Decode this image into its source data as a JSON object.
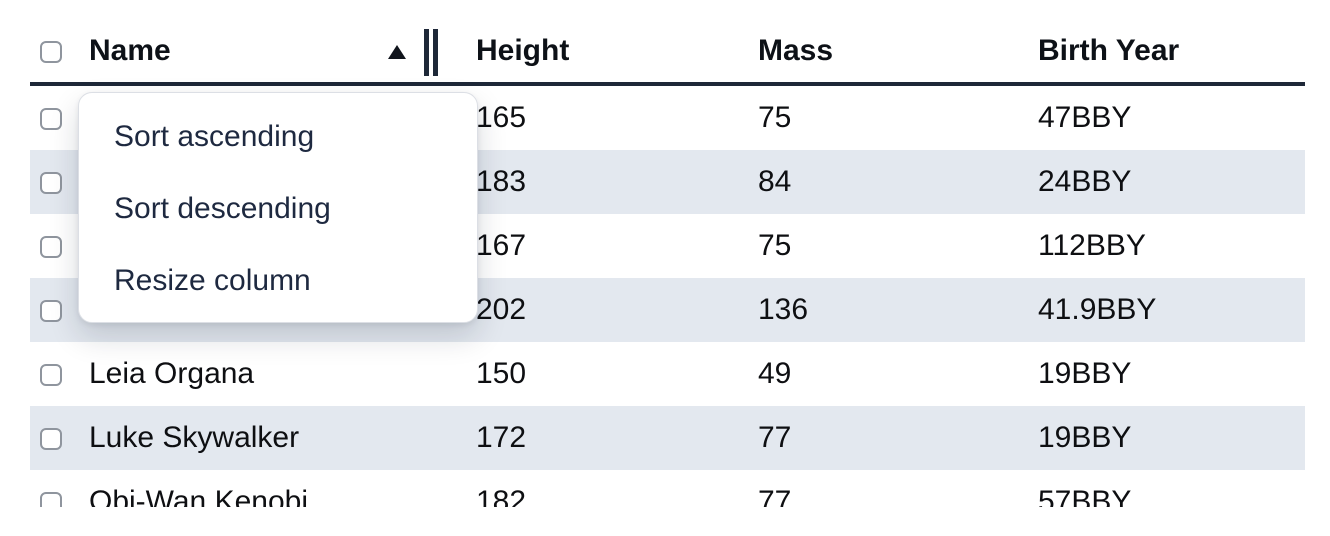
{
  "table": {
    "columns": [
      {
        "label": "Name"
      },
      {
        "label": "Height"
      },
      {
        "label": "Mass"
      },
      {
        "label": "Birth Year"
      }
    ],
    "sort": {
      "column": "Name",
      "direction": "ascending"
    },
    "select_all_checked": false,
    "rows": [
      {
        "name": "",
        "height": "165",
        "mass": "75",
        "birth_year": "47BBY",
        "selected": false
      },
      {
        "name": "",
        "height": "183",
        "mass": "84",
        "birth_year": "24BBY",
        "selected": false
      },
      {
        "name": "",
        "height": "167",
        "mass": "75",
        "birth_year": "112BBY",
        "selected": false
      },
      {
        "name": "",
        "height": "202",
        "mass": "136",
        "birth_year": "41.9BBY",
        "selected": false
      },
      {
        "name": "Leia Organa",
        "height": "150",
        "mass": "49",
        "birth_year": "19BBY",
        "selected": false
      },
      {
        "name": "Luke Skywalker",
        "height": "172",
        "mass": "77",
        "birth_year": "19BBY",
        "selected": false
      },
      {
        "name": "Obi-Wan Kenobi",
        "height": "182",
        "mass": "77",
        "birth_year": "57BBY",
        "selected": false
      }
    ]
  },
  "icons": {
    "sort_ascending_indicator": "solid-triangle-up",
    "column_resize_handle": "double-vertical-bars"
  },
  "context_menu": {
    "items": [
      {
        "label": "Sort ascending"
      },
      {
        "label": "Sort descending"
      },
      {
        "label": "Resize column"
      }
    ]
  },
  "colors": {
    "row_stripe": "#e3e8ef",
    "header_border": "#1e2838",
    "menu_text": "#1e2940",
    "cell_text": "#0e0f12"
  }
}
